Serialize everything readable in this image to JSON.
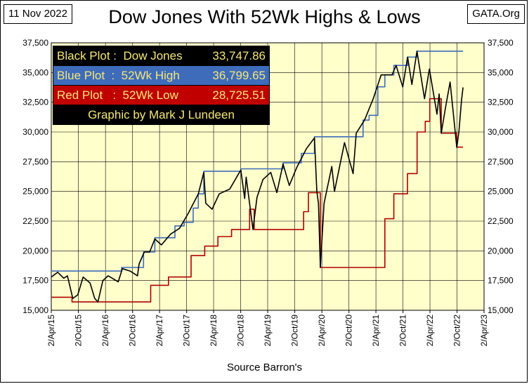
{
  "header": {
    "date": "11 Nov 2022",
    "source": "GATA.Org",
    "title": "Dow Jones With 52Wk Highs & Lows"
  },
  "legend": {
    "rows": [
      {
        "label": "Black Plot :  Dow Jones",
        "value": "33,747.86"
      },
      {
        "label": "Blue Plot  :  52Wk High",
        "value": "36,799.65"
      },
      {
        "label": "Red Plot   :  52Wk Low",
        "value": "28,725.51"
      }
    ],
    "credit": "Graphic by Mark J Lundeen"
  },
  "colors": {
    "plot_bg": "#ffffcc",
    "dow": "#000000",
    "high": "#3e6cbb",
    "low": "#b00000"
  },
  "chart_data": {
    "type": "line",
    "title": "Dow Jones With 52Wk Highs & Lows",
    "xlabel": "Source Barron's",
    "ylabel": "",
    "ylim": [
      15000,
      37500
    ],
    "xlim": [
      "2015-04-02",
      "2023-04-02"
    ],
    "yticks": [
      "15,000",
      "17,500",
      "20,000",
      "22,500",
      "25,000",
      "27,500",
      "30,000",
      "32,500",
      "35,000",
      "37,500"
    ],
    "xticks": [
      "2/Apr/15",
      "2/Oct/15",
      "2/Apr/16",
      "2/Oct/16",
      "2/Apr/17",
      "2/Oct/17",
      "2/Apr/18",
      "2/Oct/18",
      "2/Apr/19",
      "2/Oct/19",
      "2/Apr/20",
      "2/Oct/20",
      "2/Apr/21",
      "2/Oct/21",
      "2/Apr/22",
      "2/Oct/22",
      "2/Apr/23"
    ],
    "grid": true,
    "legend_position": "top-left",
    "series": [
      {
        "name": "Dow Jones",
        "x": [
          "2015-04-02",
          "2015-05-15",
          "2015-06-25",
          "2015-07-20",
          "2015-08-25",
          "2015-09-28",
          "2015-11-03",
          "2015-12-20",
          "2016-01-20",
          "2016-02-11",
          "2016-03-15",
          "2016-04-20",
          "2016-06-27",
          "2016-07-25",
          "2016-09-15",
          "2016-11-04",
          "2016-11-15",
          "2016-12-20",
          "2017-01-25",
          "2017-03-01",
          "2017-04-15",
          "2017-06-15",
          "2017-08-15",
          "2017-10-15",
          "2017-12-20",
          "2018-01-26",
          "2018-02-08",
          "2018-03-23",
          "2018-05-10",
          "2018-07-20",
          "2018-10-03",
          "2018-10-29",
          "2018-11-08",
          "2018-12-24",
          "2019-01-20",
          "2019-03-01",
          "2019-04-23",
          "2019-06-03",
          "2019-07-15",
          "2019-08-26",
          "2019-10-15",
          "2019-12-20",
          "2020-02-12",
          "2020-02-28",
          "2020-03-10",
          "2020-03-23",
          "2020-04-17",
          "2020-06-08",
          "2020-06-26",
          "2020-09-02",
          "2020-10-30",
          "2020-11-20",
          "2021-01-15",
          "2021-03-15",
          "2021-05-07",
          "2021-07-20",
          "2021-08-16",
          "2021-09-30",
          "2021-11-02",
          "2021-12-01",
          "2022-01-04",
          "2022-02-24",
          "2022-03-29",
          "2022-05-19",
          "2022-06-03",
          "2022-06-17",
          "2022-07-15",
          "2022-08-16",
          "2022-09-13",
          "2022-09-30",
          "2022-10-14",
          "2022-11-01",
          "2022-11-11"
        ],
        "values": [
          17800,
          18200,
          17700,
          17900,
          16000,
          16300,
          17800,
          17300,
          16000,
          15700,
          17500,
          17900,
          17400,
          18500,
          18300,
          17900,
          18900,
          19900,
          19900,
          21000,
          20500,
          21400,
          21900,
          23200,
          24800,
          26600,
          24000,
          23500,
          24800,
          25200,
          26800,
          24400,
          26200,
          21800,
          24500,
          26000,
          26600,
          24900,
          27300,
          25500,
          27000,
          28600,
          29500,
          25000,
          24000,
          18600,
          24000,
          27100,
          25000,
          29100,
          26500,
          29900,
          31000,
          32800,
          34800,
          34800,
          35600,
          33800,
          36300,
          34000,
          36800,
          32800,
          35300,
          31500,
          33200,
          29900,
          32000,
          34200,
          30800,
          28700,
          30000,
          32700,
          33750
        ]
      },
      {
        "name": "52Wk High",
        "x": [
          "2015-04-02",
          "2016-04-15",
          "2016-07-20",
          "2016-11-10",
          "2016-12-15",
          "2017-03-01",
          "2017-05-01",
          "2017-07-15",
          "2017-09-15",
          "2017-11-15",
          "2017-12-20",
          "2018-01-26",
          "2018-10-03",
          "2019-07-15",
          "2019-11-15",
          "2020-02-12",
          "2020-11-20",
          "2021-01-05",
          "2021-02-15",
          "2021-04-15",
          "2021-06-01",
          "2021-08-01",
          "2021-11-02",
          "2022-01-04",
          "2022-11-11"
        ],
        "values": [
          18300,
          18300,
          18600,
          18600,
          19900,
          21100,
          21100,
          22100,
          22400,
          23600,
          24800,
          26700,
          26900,
          27400,
          28200,
          29600,
          29600,
          31000,
          31400,
          33800,
          34800,
          35600,
          36300,
          36800,
          36800
        ]
      },
      {
        "name": "52Wk Low",
        "x": [
          "2015-04-02",
          "2015-08-20",
          "2016-02-10",
          "2017-02-01",
          "2017-06-01",
          "2017-11-01",
          "2018-02-01",
          "2018-05-01",
          "2018-08-01",
          "2018-12-01",
          "2019-01-01",
          "2019-03-01",
          "2019-06-01",
          "2019-10-01",
          "2019-12-01",
          "2020-01-02",
          "2020-03-23",
          "2021-03-23",
          "2021-06-01",
          "2021-08-01",
          "2021-11-01",
          "2022-01-05",
          "2022-03-01",
          "2022-04-01",
          "2022-06-17",
          "2022-09-30",
          "2022-11-11"
        ],
        "values": [
          16100,
          15700,
          15700,
          17100,
          17800,
          19600,
          20400,
          21200,
          21800,
          23500,
          21800,
          21800,
          21800,
          21800,
          23300,
          24900,
          18600,
          18600,
          22700,
          24800,
          26500,
          30000,
          30900,
          32800,
          29900,
          28725,
          28725
        ]
      }
    ]
  }
}
